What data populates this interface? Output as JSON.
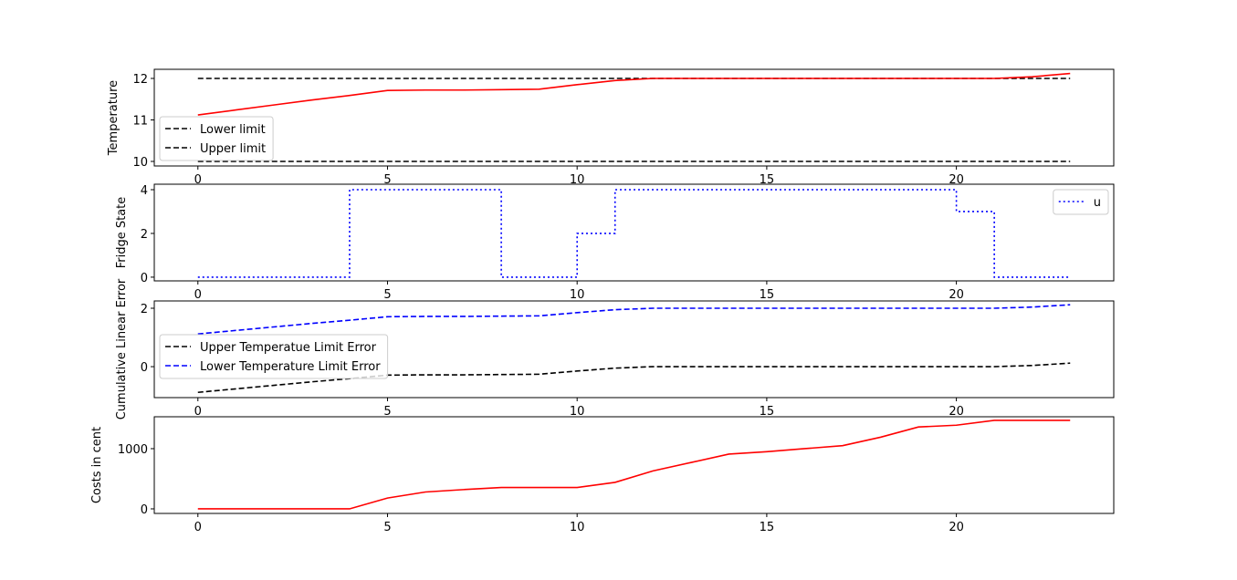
{
  "chart_data": [
    {
      "type": "line",
      "ylabel": "Temperature",
      "x": [
        0,
        1,
        2,
        3,
        4,
        5,
        6,
        7,
        8,
        9,
        10,
        11,
        12,
        13,
        14,
        15,
        16,
        17,
        18,
        19,
        20,
        21,
        22,
        23
      ],
      "series": [
        {
          "name": "Lower limit",
          "color": "#000000",
          "linestyle": "dashed",
          "values": [
            10,
            10,
            10,
            10,
            10,
            10,
            10,
            10,
            10,
            10,
            10,
            10,
            10,
            10,
            10,
            10,
            10,
            10,
            10,
            10,
            10,
            10,
            10,
            10
          ]
        },
        {
          "name": "Upper limit",
          "color": "#000000",
          "linestyle": "dashed",
          "values": [
            12,
            12,
            12,
            12,
            12,
            12,
            12,
            12,
            12,
            12,
            12,
            12,
            12,
            12,
            12,
            12,
            12,
            12,
            12,
            12,
            12,
            12,
            12,
            12
          ]
        },
        {
          "color": "#ff0000",
          "linestyle": "solid",
          "values": [
            11.12,
            11.24,
            11.36,
            11.48,
            11.59,
            11.71,
            11.72,
            11.72,
            11.73,
            11.74,
            11.85,
            11.95,
            12.0,
            12.0,
            12.0,
            12.0,
            12.0,
            12.0,
            12.0,
            12.0,
            12.0,
            12.0,
            12.04,
            12.12
          ]
        }
      ],
      "xlim": [
        -1.15,
        24.15
      ],
      "xticks": [
        0,
        5,
        10,
        15,
        20
      ],
      "ylim": [
        9.89,
        12.22
      ],
      "yticks": [
        10,
        11,
        12
      ],
      "legend": "lower left"
    },
    {
      "type": "line",
      "ylabel": "Fridge State",
      "x": [
        0,
        1,
        2,
        3,
        4,
        5,
        6,
        7,
        8,
        9,
        10,
        11,
        12,
        13,
        14,
        15,
        16,
        17,
        18,
        19,
        20,
        21,
        22,
        23
      ],
      "series": [
        {
          "name": "u",
          "color": "#0000ff",
          "linestyle": "dotted",
          "drawstyle": "steps-post",
          "values": [
            0,
            0,
            0,
            0,
            4,
            4,
            4,
            4,
            0,
            0,
            2,
            4,
            4,
            4,
            4,
            4,
            4,
            4,
            4,
            4,
            3,
            0,
            0,
            0
          ]
        }
      ],
      "xlim": [
        -1.15,
        24.15
      ],
      "xticks": [
        0,
        5,
        10,
        15,
        20
      ],
      "ylim": [
        -0.17,
        4.25
      ],
      "yticks": [
        0,
        2,
        4
      ],
      "legend": "upper right"
    },
    {
      "type": "line",
      "ylabel": "Cumulative Linear Error",
      "x": [
        0,
        1,
        2,
        3,
        4,
        5,
        6,
        7,
        8,
        9,
        10,
        11,
        12,
        13,
        14,
        15,
        16,
        17,
        18,
        19,
        20,
        21,
        22,
        23
      ],
      "series": [
        {
          "name": "Upper Temperatue Limit Error",
          "color": "#000000",
          "linestyle": "dashed",
          "values": [
            -0.88,
            -0.76,
            -0.64,
            -0.52,
            -0.41,
            -0.29,
            -0.28,
            -0.28,
            -0.27,
            -0.26,
            -0.15,
            -0.05,
            0,
            0,
            0,
            0,
            0,
            0,
            0,
            0,
            0,
            0,
            0.04,
            0.12
          ]
        },
        {
          "name": "Lower Temperature Limit Error",
          "color": "#0000ff",
          "linestyle": "dashed",
          "values": [
            1.12,
            1.24,
            1.36,
            1.48,
            1.59,
            1.71,
            1.72,
            1.72,
            1.73,
            1.74,
            1.85,
            1.95,
            2,
            2,
            2,
            2,
            2,
            2,
            2,
            2,
            2,
            2,
            2.04,
            2.12
          ]
        }
      ],
      "xlim": [
        -1.15,
        24.15
      ],
      "xticks": [
        0,
        5,
        10,
        15,
        20
      ],
      "ylim": [
        -1.06,
        2.25
      ],
      "yticks": [
        0,
        2
      ],
      "legend": "center left"
    },
    {
      "type": "line",
      "ylabel": "Costs in cent",
      "x": [
        0,
        1,
        2,
        3,
        4,
        5,
        6,
        7,
        8,
        9,
        10,
        11,
        12,
        13,
        14,
        15,
        16,
        17,
        18,
        19,
        20,
        21,
        22,
        23
      ],
      "series": [
        {
          "color": "#ff0000",
          "linestyle": "solid",
          "values": [
            0,
            0,
            0,
            0,
            0,
            180,
            280,
            320,
            355,
            355,
            355,
            440,
            630,
            770,
            910,
            950,
            1000,
            1050,
            1190,
            1360,
            1390,
            1470,
            1470,
            1470
          ]
        }
      ],
      "xlim": [
        -1.15,
        24.15
      ],
      "xticks": [
        0,
        5,
        10,
        15,
        20
      ],
      "ylim": [
        -76,
        1530
      ],
      "yticks": [
        0,
        1000
      ]
    }
  ]
}
